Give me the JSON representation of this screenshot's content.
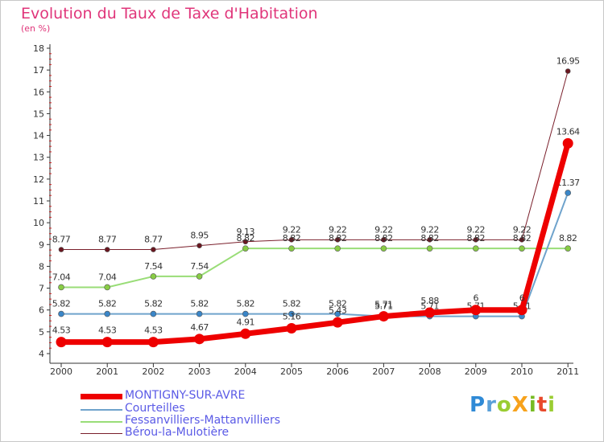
{
  "chart_data": {
    "type": "line",
    "title": "Evolution du Taux de Taxe d'Habitation",
    "subtitle": "(en %)",
    "xlabel": "",
    "ylabel": "",
    "categories": [
      "2000",
      "2001",
      "2002",
      "2003",
      "2004",
      "2005",
      "2006",
      "2007",
      "2008",
      "2009",
      "2010",
      "2011"
    ],
    "yticks": [
      "4",
      "5",
      "6",
      "7",
      "8",
      "9",
      "10",
      "11",
      "12",
      "13",
      "14",
      "15",
      "16",
      "17",
      "18"
    ],
    "ylim": [
      4,
      18
    ],
    "grid": false,
    "series": [
      {
        "name": "Bérou-la-Mulotière",
        "color": "#7a1f2b",
        "point_color": "#6a1720",
        "width": 1,
        "marker": 3,
        "values": [
          8.77,
          8.77,
          8.77,
          8.95,
          9.13,
          9.22,
          9.22,
          9.22,
          9.22,
          9.22,
          9.22,
          16.95
        ],
        "labels": [
          "8.77",
          "8.77",
          "8.77",
          "8.95",
          "9.13",
          "9.22",
          "9.22",
          "9.22",
          "9.22",
          "9.22",
          "9.22",
          "16.95"
        ]
      },
      {
        "name": "Fessanvilliers-Mattanvilliers",
        "color": "#99dd77",
        "point_color": "#88cc44",
        "width": 2,
        "marker": 3.5,
        "values": [
          7.04,
          7.04,
          7.54,
          7.54,
          8.82,
          8.82,
          8.82,
          8.82,
          8.82,
          8.82,
          8.82,
          8.82
        ],
        "labels": [
          "7.04",
          "7.04",
          "7.54",
          "7.54",
          "8.82",
          "8.82",
          "8.82",
          "8.82",
          "8.82",
          "8.82",
          "8.82",
          "8.82"
        ]
      },
      {
        "name": "Courteilles",
        "color": "#6fa3cc",
        "point_color": "#3a86c8",
        "width": 2,
        "marker": 3.5,
        "values": [
          5.82,
          5.82,
          5.82,
          5.82,
          5.82,
          5.82,
          5.82,
          5.71,
          5.71,
          5.71,
          5.71,
          11.37
        ],
        "labels": [
          "5.82",
          "5.82",
          "5.82",
          "5.82",
          "5.82",
          "5.82",
          "5.82",
          "5.71",
          "5.71",
          "5.71",
          "5.71",
          "11.37"
        ]
      },
      {
        "name": "MONTIGNY-SUR-AVRE",
        "color": "#ee0000",
        "point_color": "#ee0000",
        "width": 7,
        "marker": 6.5,
        "values": [
          4.53,
          4.53,
          4.53,
          4.67,
          4.91,
          5.16,
          5.43,
          5.71,
          5.88,
          6.0,
          6.0,
          13.64
        ],
        "labels": [
          "4.53",
          "4.53",
          "4.53",
          "4.67",
          "4.91",
          "5.16",
          "5.43",
          "5.71",
          "5.88",
          "6",
          "6",
          "13.64"
        ]
      }
    ],
    "legend": [
      "MONTIGNY-SUR-AVRE",
      "Courteilles",
      "Fessanvilliers-Mattanvilliers",
      "Bérou-la-Mulotière"
    ],
    "legend_placement": "bottom-left"
  },
  "logo": {
    "text": "ProXiti"
  }
}
